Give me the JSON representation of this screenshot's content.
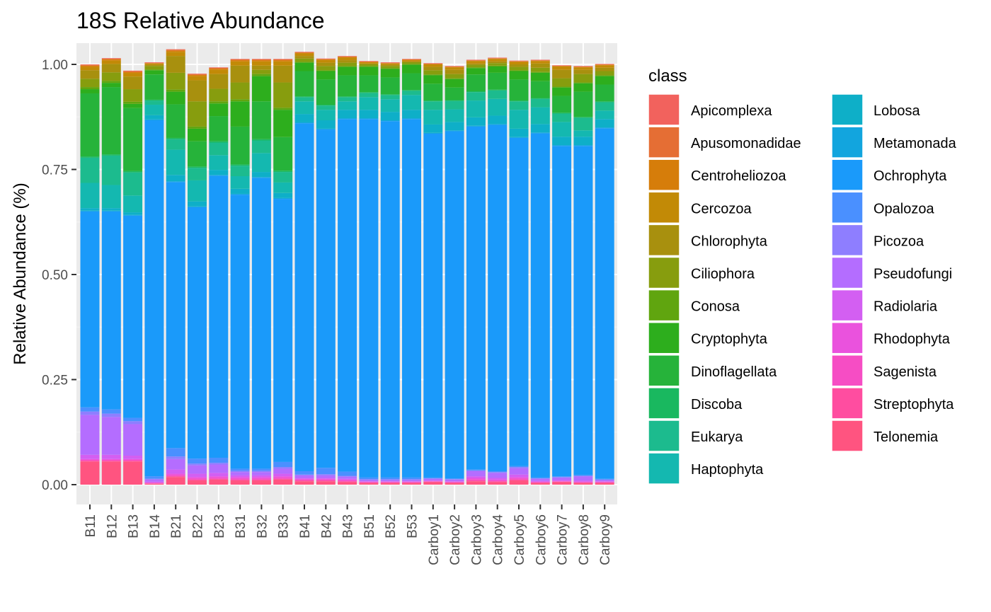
{
  "chart_data": {
    "type": "bar",
    "stacked": true,
    "title": "18S Relative Abundance",
    "xlabel": "",
    "ylabel": "Relative Abundance (%)",
    "ylim": [
      0,
      1
    ],
    "yticks": [
      0,
      0.25,
      0.5,
      0.75,
      1
    ],
    "ytick_labels": [
      "0.00",
      "0.25",
      "0.50",
      "0.75",
      "1.00"
    ],
    "grid": true,
    "legend_title": "class",
    "legend_position": "right",
    "categories": [
      "B11",
      "B12",
      "B13",
      "B14",
      "B21",
      "B22",
      "B23",
      "B31",
      "B32",
      "B33",
      "B41",
      "B42",
      "B43",
      "B51",
      "B52",
      "B53",
      "Carboy1",
      "Carboy2",
      "Carboy3",
      "Carboy4",
      "Carboy5",
      "Carboy6",
      "Carboy7",
      "Carboy8",
      "Carboy9"
    ],
    "series": [
      {
        "name": "Telonemia",
        "color": "#FF5480",
        "values": [
          0.055,
          0.055,
          0.055,
          0.002,
          0.018,
          0.01,
          0.012,
          0.01,
          0.01,
          0.012,
          0.008,
          0.008,
          0.006,
          0.004,
          0.004,
          0.004,
          0.006,
          0.004,
          0.008,
          0.006,
          0.01,
          0.004,
          0.006,
          0.004,
          0.004
        ]
      },
      {
        "name": "Streptophyta",
        "color": "#FF4DA0",
        "values": [
          0.002,
          0.002,
          0.002,
          0.001,
          0.002,
          0.002,
          0.002,
          0.002,
          0.002,
          0.002,
          0.002,
          0.002,
          0.002,
          0.001,
          0.001,
          0.001,
          0.001,
          0.001,
          0.002,
          0.002,
          0.002,
          0.001,
          0.001,
          0.001,
          0.001
        ]
      },
      {
        "name": "Sagenista",
        "color": "#F64DC4",
        "values": [
          0.002,
          0.002,
          0.002,
          0.001,
          0.003,
          0.003,
          0.003,
          0.003,
          0.003,
          0.003,
          0.002,
          0.002,
          0.002,
          0.001,
          0.001,
          0.001,
          0.001,
          0.001,
          0.003,
          0.002,
          0.003,
          0.001,
          0.001,
          0.001,
          0.001
        ]
      },
      {
        "name": "Rhodophyta",
        "color": "#EA52DD",
        "values": [
          0.002,
          0.002,
          0.002,
          0.001,
          0.003,
          0.003,
          0.003,
          0.003,
          0.003,
          0.003,
          0.002,
          0.002,
          0.002,
          0.001,
          0.001,
          0.001,
          0.001,
          0.001,
          0.003,
          0.002,
          0.003,
          0.001,
          0.001,
          0.001,
          0.001
        ]
      },
      {
        "name": "Radiolaria",
        "color": "#D35FF2",
        "values": [
          0.01,
          0.01,
          0.008,
          0.002,
          0.01,
          0.008,
          0.008,
          0.004,
          0.004,
          0.006,
          0.002,
          0.002,
          0.002,
          0.001,
          0.001,
          0.001,
          0.001,
          0.001,
          0.004,
          0.004,
          0.006,
          0.002,
          0.002,
          0.003,
          0.001
        ]
      },
      {
        "name": "Pseudofungi",
        "color": "#B46DFF",
        "values": [
          0.095,
          0.09,
          0.075,
          0.005,
          0.025,
          0.02,
          0.02,
          0.008,
          0.008,
          0.012,
          0.006,
          0.006,
          0.005,
          0.003,
          0.003,
          0.003,
          0.004,
          0.004,
          0.012,
          0.012,
          0.015,
          0.005,
          0.006,
          0.01,
          0.003
        ]
      },
      {
        "name": "Picozoa",
        "color": "#8E7EFF",
        "values": [
          0.008,
          0.008,
          0.007,
          0.002,
          0.006,
          0.004,
          0.004,
          0.003,
          0.003,
          0.004,
          0.002,
          0.003,
          0.002,
          0.002,
          0.002,
          0.002,
          0.001,
          0.001,
          0.002,
          0.002,
          0.003,
          0.001,
          0.001,
          0.001,
          0.001
        ]
      },
      {
        "name": "Opalozoa",
        "color": "#4A90FF",
        "values": [
          0.01,
          0.01,
          0.008,
          0.006,
          0.02,
          0.012,
          0.012,
          0.005,
          0.005,
          0.012,
          0.008,
          0.015,
          0.01,
          0.004,
          0.004,
          0.004,
          0.002,
          0.002,
          0.002,
          0.002,
          0.002,
          0.002,
          0.002,
          0.002,
          0.002
        ]
      },
      {
        "name": "Ochrophyta",
        "color": "#1A9AFA",
        "values": [
          0.466,
          0.471,
          0.481,
          0.847,
          0.633,
          0.598,
          0.671,
          0.652,
          0.692,
          0.626,
          0.828,
          0.805,
          0.839,
          0.853,
          0.848,
          0.853,
          0.818,
          0.826,
          0.816,
          0.824,
          0.781,
          0.819,
          0.786,
          0.783,
          0.834
        ]
      },
      {
        "name": "Metamonada",
        "color": "#12A5DE",
        "values": [
          0.002,
          0.002,
          0.002,
          0.002,
          0.002,
          0.002,
          0.002,
          0.002,
          0.002,
          0.002,
          0.002,
          0.002,
          0.002,
          0.002,
          0.002,
          0.002,
          0.002,
          0.002,
          0.002,
          0.002,
          0.002,
          0.002,
          0.002,
          0.002,
          0.002
        ]
      },
      {
        "name": "Lobosa",
        "color": "#0EAFC8",
        "values": [
          0.006,
          0.006,
          0.006,
          0.01,
          0.015,
          0.012,
          0.012,
          0.012,
          0.012,
          0.012,
          0.02,
          0.02,
          0.02,
          0.02,
          0.02,
          0.02,
          0.02,
          0.02,
          0.02,
          0.02,
          0.02,
          0.02,
          0.02,
          0.02,
          0.02
        ]
      },
      {
        "name": "Haptophyta",
        "color": "#14B8B0",
        "values": [
          0.06,
          0.055,
          0.04,
          0.025,
          0.06,
          0.05,
          0.035,
          0.03,
          0.045,
          0.025,
          0.03,
          0.025,
          0.02,
          0.03,
          0.03,
          0.035,
          0.035,
          0.03,
          0.04,
          0.04,
          0.045,
          0.04,
          0.035,
          0.015,
          0.02
        ]
      },
      {
        "name": "Eukarya",
        "color": "#1CBB8E",
        "values": [
          0.06,
          0.07,
          0.055,
          0.01,
          0.025,
          0.03,
          0.03,
          0.025,
          0.03,
          0.025,
          0.01,
          0.01,
          0.01,
          0.01,
          0.01,
          0.01,
          0.02,
          0.02,
          0.02,
          0.02,
          0.02,
          0.02,
          0.02,
          0.03,
          0.02
        ]
      },
      {
        "name": "Discoba",
        "color": "#19B85F",
        "values": [
          0.003,
          0.003,
          0.003,
          0.002,
          0.003,
          0.003,
          0.003,
          0.003,
          0.003,
          0.003,
          0.002,
          0.002,
          0.002,
          0.002,
          0.002,
          0.002,
          0.002,
          0.002,
          0.002,
          0.002,
          0.002,
          0.002,
          0.002,
          0.002,
          0.002
        ]
      },
      {
        "name": "Dinoflagellata",
        "color": "#26B33A",
        "values": [
          0.15,
          0.16,
          0.15,
          0.06,
          0.08,
          0.06,
          0.06,
          0.09,
          0.09,
          0.08,
          0.06,
          0.06,
          0.05,
          0.04,
          0.04,
          0.04,
          0.04,
          0.03,
          0.04,
          0.04,
          0.05,
          0.04,
          0.04,
          0.06,
          0.04
        ]
      },
      {
        "name": "Cryptophyta",
        "color": "#2DAE1D",
        "values": [
          0.01,
          0.01,
          0.01,
          0.01,
          0.03,
          0.03,
          0.03,
          0.06,
          0.06,
          0.065,
          0.02,
          0.02,
          0.02,
          0.02,
          0.02,
          0.02,
          0.02,
          0.02,
          0.015,
          0.015,
          0.02,
          0.02,
          0.02,
          0.02,
          0.02
        ]
      },
      {
        "name": "Conosa",
        "color": "#60A50F",
        "values": [
          0.005,
          0.005,
          0.005,
          0.002,
          0.005,
          0.005,
          0.005,
          0.005,
          0.005,
          0.005,
          0.002,
          0.002,
          0.002,
          0.002,
          0.002,
          0.002,
          0.002,
          0.002,
          0.002,
          0.002,
          0.002,
          0.002,
          0.002,
          0.002,
          0.002
        ]
      },
      {
        "name": "Ciliophora",
        "color": "#879D0E",
        "values": [
          0.02,
          0.02,
          0.03,
          0.008,
          0.04,
          0.06,
          0.03,
          0.04,
          0.01,
          0.06,
          0.008,
          0.01,
          0.008,
          0.004,
          0.005,
          0.004,
          0.01,
          0.01,
          0.006,
          0.006,
          0.008,
          0.01,
          0.02,
          0.02,
          0.01
        ]
      },
      {
        "name": "Chlorophyta",
        "color": "#A8900E",
        "values": [
          0.02,
          0.02,
          0.03,
          0.003,
          0.04,
          0.05,
          0.035,
          0.04,
          0.01,
          0.04,
          0.006,
          0.008,
          0.006,
          0.002,
          0.003,
          0.002,
          0.008,
          0.01,
          0.003,
          0.004,
          0.006,
          0.01,
          0.02,
          0.01,
          0.008
        ]
      },
      {
        "name": "Cercozoa",
        "color": "#C28A06",
        "values": [
          0.008,
          0.008,
          0.008,
          0.003,
          0.01,
          0.01,
          0.01,
          0.01,
          0.01,
          0.01,
          0.006,
          0.006,
          0.006,
          0.003,
          0.003,
          0.003,
          0.006,
          0.006,
          0.006,
          0.006,
          0.006,
          0.006,
          0.008,
          0.006,
          0.006
        ]
      },
      {
        "name": "Centroheliozoa",
        "color": "#D67D0A",
        "values": [
          0.003,
          0.003,
          0.003,
          0.001,
          0.003,
          0.003,
          0.003,
          0.003,
          0.003,
          0.003,
          0.002,
          0.002,
          0.002,
          0.001,
          0.001,
          0.001,
          0.001,
          0.001,
          0.001,
          0.001,
          0.001,
          0.001,
          0.001,
          0.001,
          0.001
        ]
      },
      {
        "name": "Apusomonadidae",
        "color": "#E56E34",
        "values": [
          0.002,
          0.002,
          0.002,
          0.001,
          0.002,
          0.002,
          0.002,
          0.002,
          0.002,
          0.002,
          0.001,
          0.001,
          0.001,
          0.001,
          0.001,
          0.001,
          0.001,
          0.001,
          0.001,
          0.001,
          0.001,
          0.001,
          0.001,
          0.001,
          0.001
        ]
      },
      {
        "name": "Apicomplexa",
        "color": "#F2625D",
        "values": [
          0.001,
          0.001,
          0.001,
          0.001,
          0.001,
          0.001,
          0.001,
          0.001,
          0.001,
          0.001,
          0.001,
          0.001,
          0.001,
          0.001,
          0.001,
          0.001,
          0.001,
          0.001,
          0.001,
          0.001,
          0.001,
          0.001,
          0.001,
          0.001,
          0.001
        ]
      }
    ],
    "legend": {
      "col1": [
        "Apicomplexa",
        "Apusomonadidae",
        "Centroheliozoa",
        "Cercozoa",
        "Chlorophyta",
        "Ciliophora",
        "Conosa",
        "Cryptophyta",
        "Dinoflagellata",
        "Discoba",
        "Eukarya",
        "Haptophyta"
      ],
      "col2": [
        "Lobosa",
        "Metamonada",
        "Ochrophyta",
        "Opalozoa",
        "Picozoa",
        "Pseudofungi",
        "Radiolaria",
        "Rhodophyta",
        "Sagenista",
        "Streptophyta",
        "Telonemia"
      ]
    }
  }
}
